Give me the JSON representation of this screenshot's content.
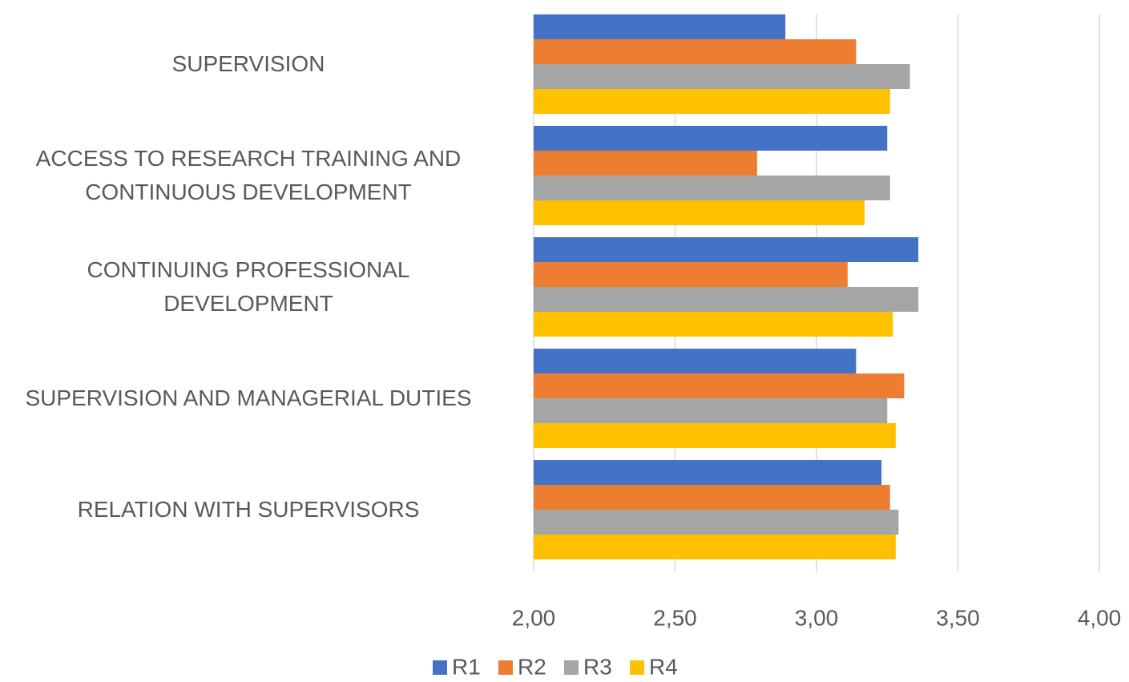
{
  "chart_data": {
    "type": "barh",
    "categories": [
      "SUPERVISION",
      "ACCESS TO RESEARCH TRAINING AND\nCONTINUOUS DEVELOPMENT",
      "CONTINUING PROFESSIONAL\nDEVELOPMENT",
      "SUPERVISION AND MANAGERIAL DUTIES",
      "RELATION WITH SUPERVISORS"
    ],
    "series": [
      {
        "name": "R1",
        "color": "#4472c4",
        "values": [
          2.89,
          3.25,
          3.36,
          3.14,
          3.23
        ]
      },
      {
        "name": "R2",
        "color": "#ed7d31",
        "values": [
          3.14,
          2.79,
          3.11,
          3.31,
          3.26
        ]
      },
      {
        "name": "R3",
        "color": "#a5a5a5",
        "values": [
          3.33,
          3.26,
          3.36,
          3.25,
          3.29
        ]
      },
      {
        "name": "R4",
        "color": "#ffc000",
        "values": [
          3.26,
          3.17,
          3.27,
          3.28,
          3.28
        ]
      }
    ],
    "xlim": [
      2,
      4
    ],
    "xticks": [
      {
        "value": 2,
        "label": "2,00"
      },
      {
        "value": 2.5,
        "label": "2,50"
      },
      {
        "value": 3,
        "label": "3,00"
      },
      {
        "value": 3.5,
        "label": "3,50"
      },
      {
        "value": 4,
        "label": "4,00"
      }
    ],
    "grid": true,
    "legend": "bottom"
  }
}
